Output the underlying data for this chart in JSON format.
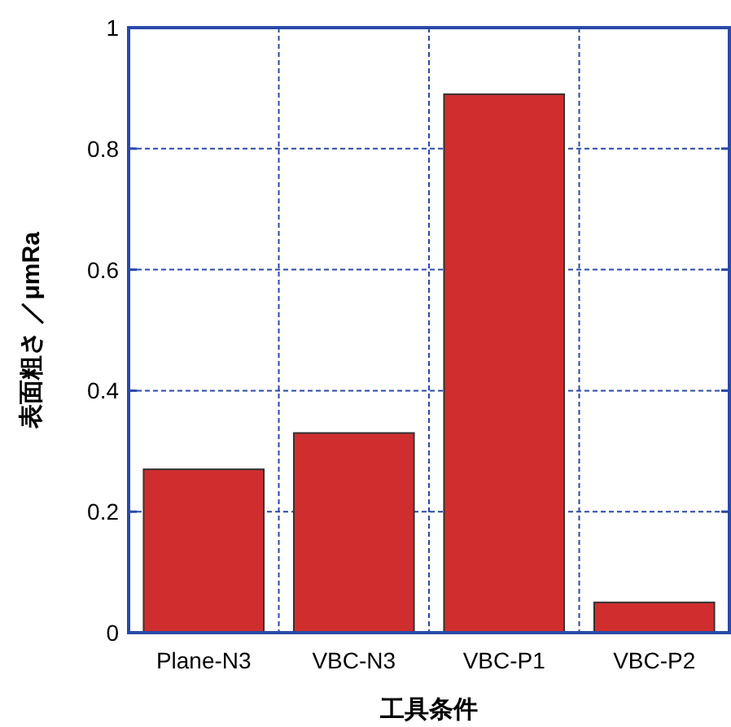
{
  "chart_data": {
    "type": "bar",
    "xlabel": "工具条件",
    "ylabel": "表面粗さ ／μmRa",
    "categories": [
      "Plane-N3",
      "VBC-N3",
      "VBC-P1",
      "VBC-P2"
    ],
    "values": [
      0.27,
      0.33,
      0.89,
      0.05
    ],
    "color": "#d02e2e",
    "ylim": [
      0,
      1
    ],
    "yticks": [
      0,
      0.2,
      0.4,
      0.6,
      0.8,
      1
    ],
    "grid": true
  }
}
